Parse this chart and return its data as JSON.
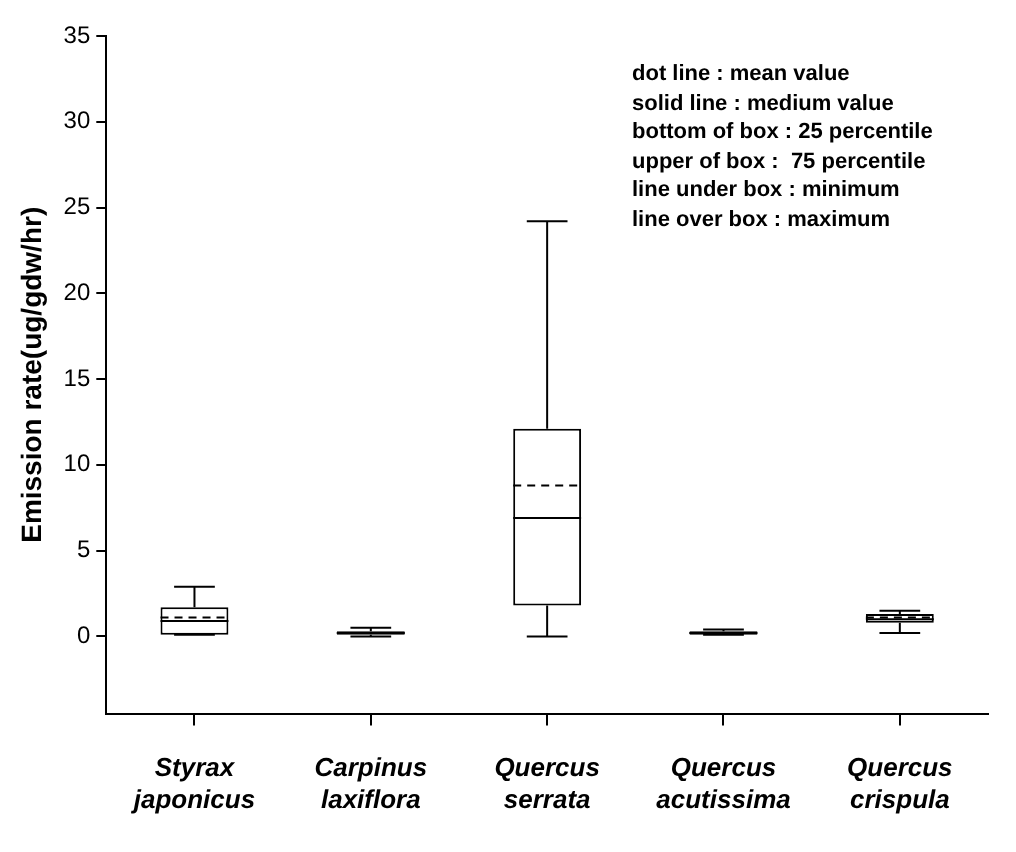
{
  "chart_data": {
    "type": "box",
    "ylabel": "Emission rate(ug/gdw/hr)",
    "categories": [
      "Styrax japonicus",
      "Carpinus laxiflora",
      "Quercus serrata",
      "Quercus acutissima",
      "Quercus crispula"
    ],
    "boxes": [
      {
        "low": 0.1,
        "q1": 0.1,
        "median": 0.9,
        "q3": 1.7,
        "high": 2.9,
        "mean": 1.1
      },
      {
        "low": 0.0,
        "q1": 0.1,
        "median": 0.2,
        "q3": 0.3,
        "high": 0.5,
        "mean": 0.2
      },
      {
        "low": 0.0,
        "q1": 1.8,
        "median": 6.9,
        "q3": 12.1,
        "high": 24.2,
        "mean": 8.8
      },
      {
        "low": 0.1,
        "q1": 0.1,
        "median": 0.2,
        "q3": 0.3,
        "high": 0.4,
        "mean": 0.2
      },
      {
        "low": 0.2,
        "q1": 0.8,
        "median": 1.0,
        "q3": 1.3,
        "high": 1.5,
        "mean": 1.1
      }
    ],
    "ylim": [
      -4.5,
      35
    ],
    "yticks": [
      0,
      5,
      10,
      15,
      20,
      25,
      30,
      35
    ],
    "grid": false,
    "legend": false,
    "annotations": [
      "dot line : mean value",
      "solid line : medium value",
      "bottom of box : 25 percentile",
      "upper of box :  75 percentile",
      "line under box : minimum",
      "line over box : maximum"
    ]
  }
}
